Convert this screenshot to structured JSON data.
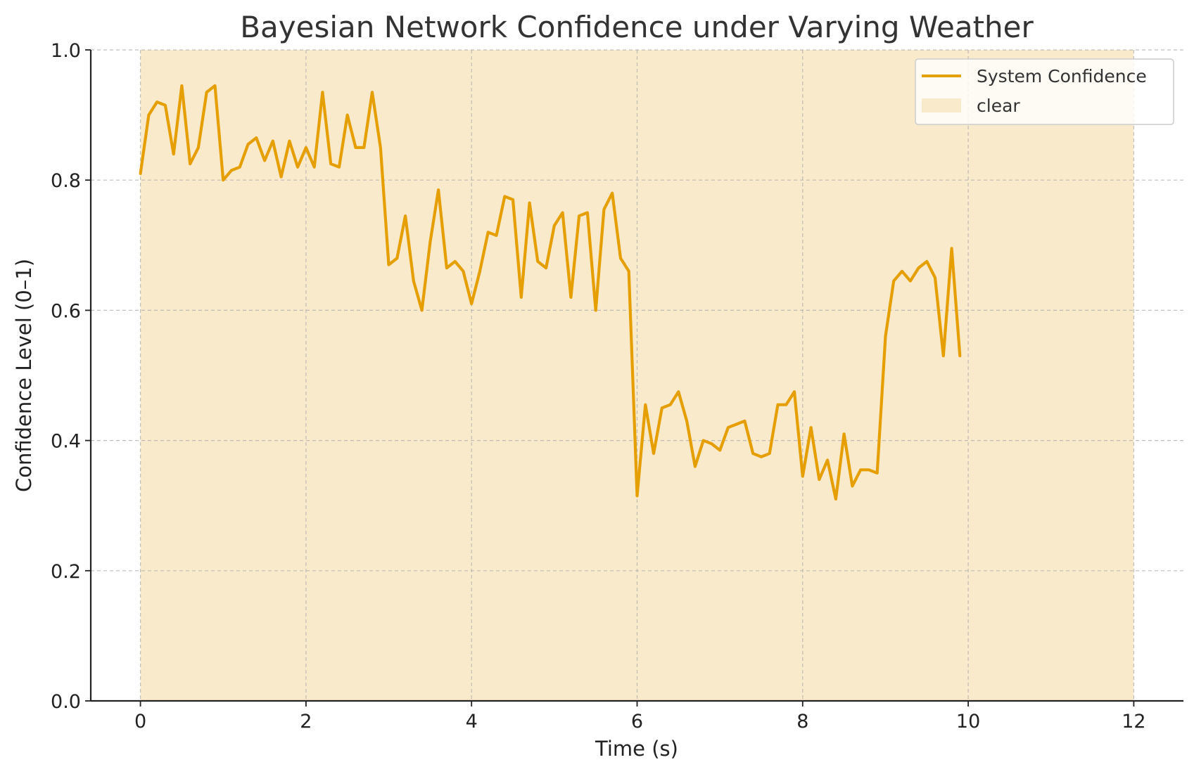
{
  "chart_data": {
    "type": "line",
    "title": "Bayesian Network Confidence under Varying Weather",
    "xlabel": "Time (s)",
    "ylabel": "Confidence Level (0–1)",
    "xlim": [
      -0.6,
      12.6
    ],
    "ylim": [
      0.0,
      1.0
    ],
    "xticks": [
      "0",
      "2",
      "4",
      "6",
      "8",
      "10",
      "12"
    ],
    "yticks": [
      "0.0",
      "0.2",
      "0.4",
      "0.6",
      "0.8",
      "1.0"
    ],
    "grid": true,
    "legend_position": "top-right",
    "colors": {
      "line": "#E69F00",
      "band": "#F9EACB"
    },
    "bands": [
      {
        "name": "clear",
        "x_start": 0,
        "x_end": 12
      }
    ],
    "series": [
      {
        "name": "System Confidence",
        "x": [
          0.0,
          0.1,
          0.2,
          0.3,
          0.4,
          0.5,
          0.6,
          0.7,
          0.8,
          0.9,
          1.0,
          1.1,
          1.2,
          1.3,
          1.4,
          1.5,
          1.6,
          1.7,
          1.8,
          1.9,
          2.0,
          2.1,
          2.2,
          2.3,
          2.4,
          2.5,
          2.6,
          2.7,
          2.8,
          2.9,
          3.0,
          3.1,
          3.2,
          3.3,
          3.4,
          3.5,
          3.6,
          3.7,
          3.8,
          3.9,
          4.0,
          4.1,
          4.2,
          4.3,
          4.4,
          4.5,
          4.6,
          4.7,
          4.8,
          4.9,
          5.0,
          5.1,
          5.2,
          5.3,
          5.4,
          5.5,
          5.6,
          5.7,
          5.8,
          5.9,
          6.0,
          6.1,
          6.2,
          6.3,
          6.4,
          6.5,
          6.6,
          6.7,
          6.8,
          6.9,
          7.0,
          7.1,
          7.2,
          7.3,
          7.4,
          7.5,
          7.6,
          7.7,
          7.8,
          7.9,
          8.0,
          8.1,
          8.2,
          8.3,
          8.4,
          8.5,
          8.6,
          8.7,
          8.8,
          8.9,
          9.0,
          9.1,
          9.2,
          9.3,
          9.4,
          9.5,
          9.6,
          9.7,
          9.8,
          9.9
        ],
        "values": [
          0.81,
          0.9,
          0.92,
          0.915,
          0.84,
          0.945,
          0.825,
          0.85,
          0.935,
          0.945,
          0.8,
          0.815,
          0.82,
          0.855,
          0.865,
          0.83,
          0.86,
          0.805,
          0.86,
          0.82,
          0.85,
          0.82,
          0.935,
          0.825,
          0.82,
          0.9,
          0.85,
          0.85,
          0.935,
          0.85,
          0.67,
          0.68,
          0.745,
          0.645,
          0.6,
          0.705,
          0.785,
          0.665,
          0.675,
          0.66,
          0.61,
          0.66,
          0.72,
          0.715,
          0.775,
          0.77,
          0.62,
          0.765,
          0.675,
          0.665,
          0.73,
          0.75,
          0.62,
          0.745,
          0.75,
          0.6,
          0.755,
          0.78,
          0.68,
          0.66,
          0.315,
          0.455,
          0.38,
          0.45,
          0.455,
          0.475,
          0.43,
          0.36,
          0.4,
          0.395,
          0.385,
          0.42,
          0.425,
          0.43,
          0.38,
          0.375,
          0.38,
          0.455,
          0.455,
          0.475,
          0.345,
          0.42,
          0.34,
          0.37,
          0.31,
          0.41,
          0.33,
          0.355,
          0.355,
          0.35,
          0.56,
          0.645,
          0.66,
          0.645,
          0.665,
          0.675,
          0.65,
          0.53,
          0.695,
          0.53
        ]
      }
    ]
  }
}
